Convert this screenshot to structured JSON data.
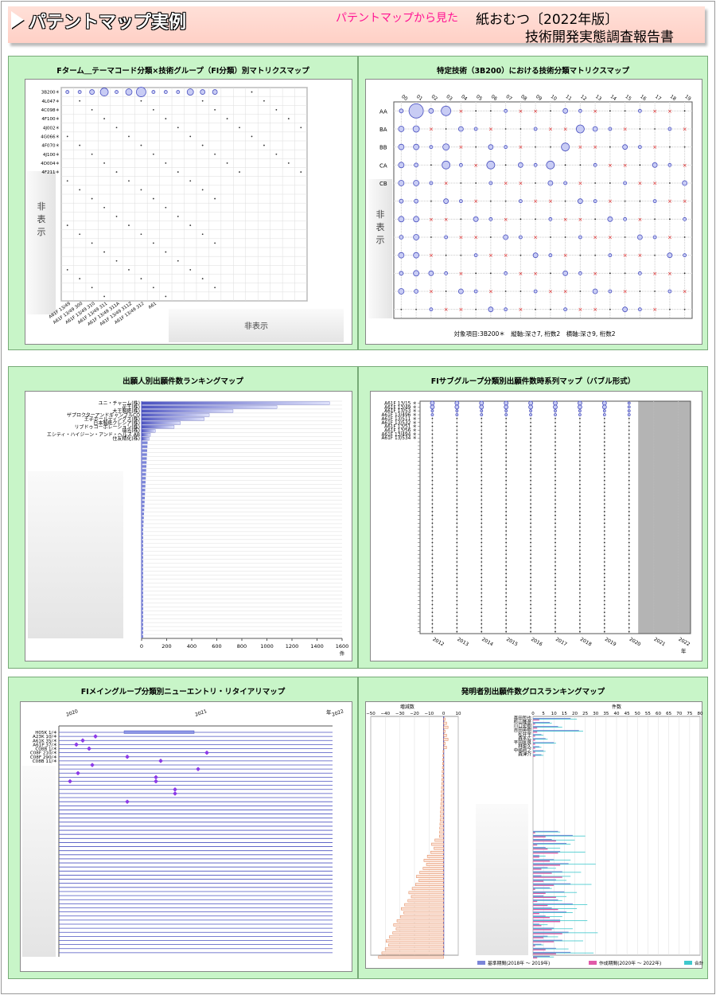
{
  "header": {
    "title": "パテントマップ実例",
    "subtitle": "パテントマップから見た",
    "main_title": "紙おむつ〔2022年版〕",
    "report": "技術開発実態調査報告書"
  },
  "hidden_label": "非表示",
  "chart_data": [
    {
      "type": "bubble-matrix",
      "title": "Fターム＿テーマコード分類×技術グループ（FI分類）別マトリクスマップ",
      "y_labels": [
        "3B200＊",
        "4L047＊",
        "4C098＊",
        "4F100＊",
        "4J002＊",
        "4G066＊",
        "4F070＊",
        "4J100＊",
        "4D004＊",
        "4F211＊"
      ],
      "x_labels": [
        "A61F 13/49",
        "A61F 13/49 300",
        "A61F 13/49 310",
        "A61F 13/49 311",
        "A61F 13/49 311A",
        "A61F 13/49 311Z",
        "A61F 13/49 312",
        "A61"
      ],
      "hidden_rows_label": "非表示",
      "hidden_cols_label": "非表示"
    },
    {
      "type": "bubble-matrix",
      "title": "特定技術（3B200）における技術分類マトリクスマップ",
      "x_labels": [
        "00",
        "01",
        "02",
        "03",
        "04",
        "05",
        "06",
        "07",
        "08",
        "09",
        "10",
        "11",
        "12",
        "13",
        "14",
        "15",
        "16",
        "17",
        "18",
        "19"
      ],
      "y_labels": [
        "AA",
        "BA",
        "BB",
        "CA",
        "CB"
      ],
      "hidden_rows_label": "非表示",
      "footnote": "対象項目:3B200＊　縦軸:深さ7, 桁数2　横軸:深さ9, 桁数2"
    },
    {
      "type": "bar",
      "title": "出願人別出願件数ランキングマップ",
      "categories": [
        "ユニ・チャーム(株)",
        "花王(株)",
        "大王製紙(株)",
        "ザプロクターアンドギャンブルCO",
        "王子ホールディングス(株)",
        "日本製紙クレシア(株)",
        "リブドゥコーポレーション(株)",
        "瑞光(株)",
        "エシティ・ハイジーン・アンド・ヘルス AB",
        "住友精化(株)"
      ],
      "values": [
        1500,
        1080,
        730,
        540,
        500,
        310,
        260,
        110,
        70,
        60
      ],
      "xlim": [
        0,
        1600
      ],
      "xticks": [
        "0",
        "200",
        "400",
        "600",
        "800",
        "1000",
        "1200",
        "1400",
        "1600"
      ],
      "xunit": "件"
    },
    {
      "type": "bubble-timeline",
      "title": "FIサブグループ分類別出願件数時系列マップ（バブル形式）",
      "categories": [
        "A61F 13/15 ＊",
        "A61F 13/49 ＊",
        "A61F 13/53 ＊",
        "A61F 13/496 ＊",
        "A61F 13/511 ＊",
        "A61F 13/532 ＊",
        "A61F 13/51 ＊",
        "A61F 13/56 ＊",
        "A61F 13/494 ＊",
        "A61F 13/534 ＊"
      ],
      "x": [
        "2012",
        "2013",
        "2014",
        "2015",
        "2016",
        "2017",
        "2018",
        "2019",
        "2020",
        "2021",
        "2022"
      ],
      "xunit": "年"
    },
    {
      "type": "timeline",
      "title": "FIメイングループ分類別ニューエントリ・リタイアリマップ",
      "x": [
        "2020",
        "2021",
        "2022"
      ],
      "xunit": "年",
      "categories": [
        "H05K 1/＊",
        "A23K 10/＊",
        "A61K 35/＊",
        "A61P 37/＊",
        "C08B 1/＊",
        "C08F 210/＊",
        "C08F 290/＊",
        "C08B 11/＊"
      ]
    },
    {
      "type": "bar",
      "title": "発明者別出願件数グロスランキングマップ",
      "categories": [
        "喜田哲也",
        "杉山隆彦",
        "川口宏樹",
        "吉田英樹",
        "松井宇",
        "森本広",
        "平田匡良",
        "林俊久",
        "中嶋則之",
        "森津介"
      ],
      "left_axis_label": "増減数",
      "left_ticks": [
        "−50",
        "−40",
        "−30",
        "−20",
        "−10",
        "0",
        "10"
      ],
      "right_axis_label": "件数",
      "right_ticks": [
        "0",
        "5",
        "10",
        "15",
        "20",
        "25",
        "30",
        "35",
        "40",
        "45",
        "50",
        "55",
        "60",
        "65",
        "70",
        "75",
        "80"
      ],
      "legend": [
        "基準期間(2018年 ～ 2019年)",
        "作成期間(2020年 ～ 2022年)",
        "合計"
      ],
      "series_colors": [
        "#7b85d8",
        "#e05aa8",
        "#3fc8cc"
      ]
    }
  ]
}
